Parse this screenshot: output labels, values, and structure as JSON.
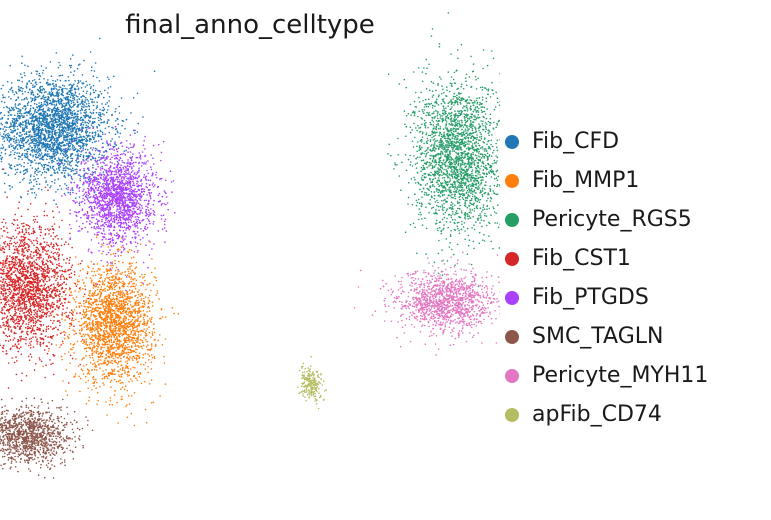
{
  "chart_data": {
    "type": "scatter",
    "title": "final_anno_celltype",
    "xlabel": "",
    "ylabel": "",
    "grid": false,
    "axes_visible": false,
    "legend_placement": "right",
    "series": [
      {
        "name": "Fib_CFD",
        "color": "#1f77b4",
        "center": [
          -7.5,
          6.5
        ],
        "spread": [
          3.4,
          2.9
        ],
        "n": 2600
      },
      {
        "name": "Fib_MMP1",
        "color": "#ff7f0e",
        "center": [
          -4.4,
          -2.6
        ],
        "spread": [
          2.4,
          3.2
        ],
        "n": 2100
      },
      {
        "name": "Pericyte_RGS5",
        "color": "#279e68",
        "center": [
          13.2,
          5.2
        ],
        "spread": [
          2.6,
          4.2
        ],
        "n": 2300
      },
      {
        "name": "Fib_CST1",
        "color": "#d62728",
        "center": [
          -8.8,
          -0.9
        ],
        "spread": [
          2.6,
          3.4
        ],
        "n": 2000
      },
      {
        "name": "Fib_PTGDS",
        "color": "#aa40fc",
        "center": [
          -4.2,
          3.3
        ],
        "spread": [
          2.3,
          2.6
        ],
        "n": 1700
      },
      {
        "name": "SMC_TAGLN",
        "color": "#8c564b",
        "center": [
          -8.8,
          -7.8
        ],
        "spread": [
          2.6,
          1.5
        ],
        "n": 1200
      },
      {
        "name": "Pericyte_MYH11",
        "color": "#e377c2",
        "center": [
          12.6,
          -1.6
        ],
        "spread": [
          3.0,
          1.7
        ],
        "n": 1300
      },
      {
        "name": "apFib_CD74",
        "color": "#b5bd61",
        "center": [
          5.7,
          -5.4
        ],
        "spread": [
          0.7,
          0.9
        ],
        "n": 220
      }
    ]
  }
}
